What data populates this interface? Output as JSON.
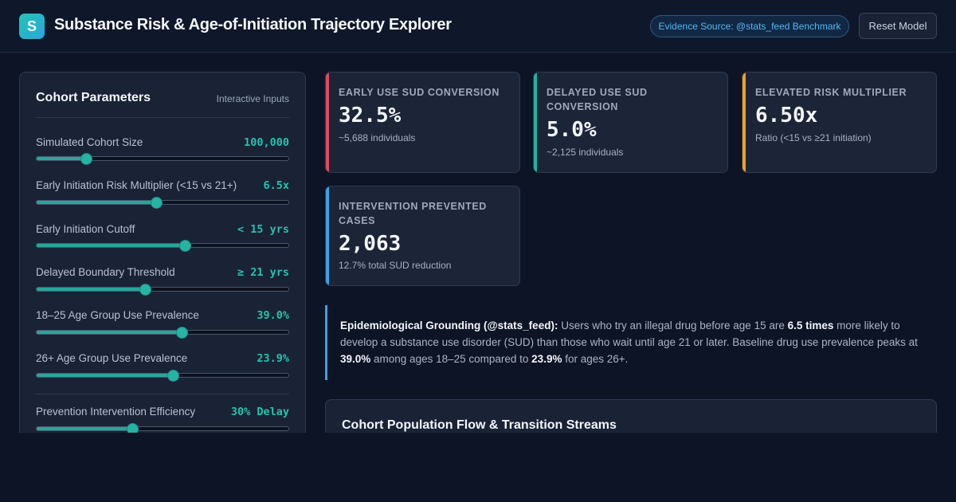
{
  "header": {
    "logo_letter": "S",
    "title": "Substance Risk & Age-of-Initiation Trajectory Explorer",
    "badge": "Evidence Source: @stats_feed Benchmark",
    "reset_label": "Reset Model"
  },
  "panel": {
    "title": "Cohort Parameters",
    "subtitle": "Interactive Inputs",
    "params": [
      {
        "label": "Simulated Cohort Size",
        "value": "100,000",
        "level_pct": 19.5
      },
      {
        "label": "Early Initiation Risk Multiplier (<15 vs 21+)",
        "value": "6.5x",
        "level_pct": 47.5
      },
      {
        "label": "Early Initiation Cutoff",
        "value": "< 15 yrs",
        "level_pct": 59
      },
      {
        "label": "Delayed Boundary Threshold",
        "value": "≥ 21 yrs",
        "level_pct": 43
      },
      {
        "label": "18–25 Age Group Use Prevalence",
        "value": "39.0%",
        "level_pct": 57.5
      },
      {
        "label": "26+ Age Group Use Prevalence",
        "value": "23.9%",
        "level_pct": 54
      },
      {
        "label": "Prevention Intervention Efficiency",
        "value": "30% Delay",
        "level_pct": 38
      }
    ]
  },
  "cards": [
    {
      "label": "Early Use SUD Conversion",
      "value": "32.5%",
      "note": "~5,688 individuals",
      "accent": "#e0495d"
    },
    {
      "label": "Delayed Use SUD Conversion",
      "value": "5.0%",
      "note": "~2,125 individuals",
      "accent": "#1fb3a0"
    },
    {
      "label": "Elevated Risk Multiplier",
      "value": "6.50x",
      "note": "Ratio (<15 vs ≥21 initiation)",
      "accent": "#f0a020"
    },
    {
      "label": "Intervention Prevented Cases",
      "value": "2,063",
      "note": "12.7% total SUD reduction",
      "accent": "#3aa2e6"
    }
  ],
  "evidence": {
    "lead": "Epidemiological Grounding (@stats_feed):",
    "t1": " Users who try an illegal drug before age 15 are ",
    "b1": "6.5 times",
    "t2": " more likely to develop a substance use disorder (SUD) than those who wait until age 21 or later. Baseline drug use prevalence peaks at ",
    "b2": "39.0%",
    "t3": " among ages 18–25 compared to ",
    "b3": "23.9%",
    "t4": " for ages 26+."
  },
  "flow": {
    "title": "Cohort Population Flow & Transition Streams"
  }
}
